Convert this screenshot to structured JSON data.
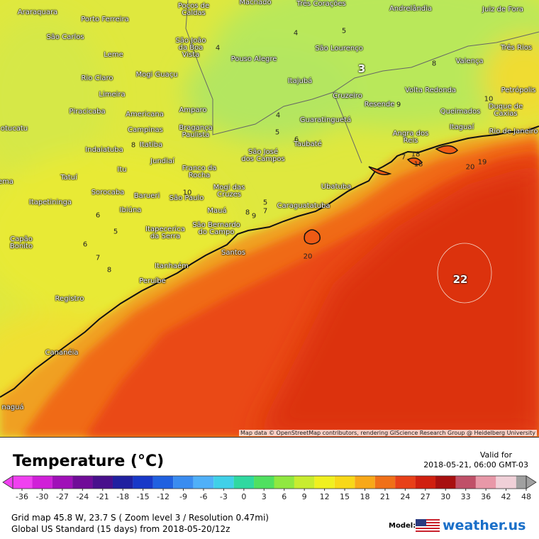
{
  "map": {
    "cities": [
      "Araraquara",
      "Porto Ferreira",
      "Poços de\nCaldas",
      "Machado",
      "Três Corações",
      "Andrelândia",
      "Juiz de Fora",
      "São Carlos",
      "São João\nda Boa\nVista",
      "Três Rios",
      "Leme",
      "Pouso Alegre",
      "São Lourenço",
      "Valença",
      "Mogi Guaçu",
      "Rio Claro",
      "Itajubá",
      "Limeira",
      "Cruzeiro",
      "Resende",
      "Volta Redonda",
      "Petrópolis",
      "Duque de\nCaxias",
      "Piracicaba",
      "Americana",
      "Amparo",
      "Queimados",
      "Guaratinguetá",
      "Campinas",
      "Bragança\nPaulista",
      "Itaguaí",
      "Rio de Janeiro",
      "otucatu",
      "Indaiatuba",
      "Itatiba",
      "Taubaté",
      "Angra dos\nReis",
      "São José\ndos Campos",
      "Jundiaí",
      "Itu",
      "Franco da\nRocha",
      "Tatuí",
      "ema",
      "Sorocaba",
      "Barueri",
      "São Paulo",
      "Mogi das\nCruzes",
      "Ubatuba",
      "Itapetininga",
      "Ibiúna",
      "Mauá",
      "Caraguatatuba",
      "São Bernardo\ndo Campo",
      "Itapecerica\nda Serra",
      "Capão\nBonito",
      "Santos",
      "Itanhaém",
      "Peruíbe",
      "Registro",
      "Cananéia",
      "naguá"
    ],
    "extremes": [
      3,
      22
    ],
    "contour_labels": [
      4,
      5,
      4,
      8,
      4,
      5,
      10,
      9,
      8,
      6,
      7,
      18,
      18,
      20,
      19,
      5,
      10,
      6,
      5,
      8,
      9,
      7,
      6,
      7,
      8,
      20
    ],
    "attribution": "Map data © OpenStreetMap contributors, rendering GIScience Research Group @ Heidelberg University"
  },
  "legend": {
    "title": "Temperature (°C)",
    "valid_label": "Valid for",
    "valid_time": "2018-05-21, 06:00 GMT-03",
    "colorbar": {
      "ticks": [
        -36,
        -30,
        -27,
        -24,
        -21,
        -18,
        -15,
        -12,
        -9,
        -6,
        -3,
        0,
        3,
        6,
        9,
        12,
        15,
        18,
        21,
        24,
        27,
        30,
        33,
        36,
        42,
        48
      ],
      "colors": [
        "#f040f0",
        "#d020d8",
        "#a010b8",
        "#700c98",
        "#48108c",
        "#2020a0",
        "#1838c8",
        "#2060e0",
        "#3a8cf0",
        "#50b0f8",
        "#40d0e8",
        "#30d8a0",
        "#50e060",
        "#90e840",
        "#c8ec30",
        "#f0f020",
        "#f8d818",
        "#f8a818",
        "#f07018",
        "#e84018",
        "#d02010",
        "#a81010",
        "#c05068",
        "#e898a8",
        "#f0d0d8",
        "#a0a0a0"
      ]
    },
    "grid_info": "Grid map 45.8 W, 23.7 S ( Zoom level 3 / Resolution 0.47mi)",
    "model_info": "Global US Standard (15 days) from 2018-05-20/12z",
    "model_label": "Model:",
    "brand": "weather.us"
  }
}
